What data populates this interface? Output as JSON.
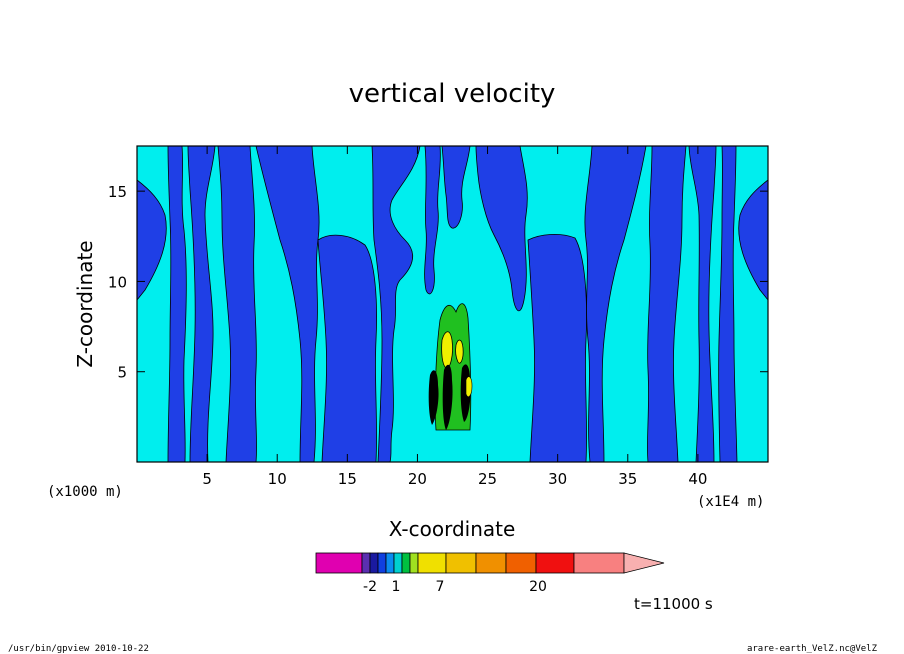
{
  "chart_data": {
    "type": "contour",
    "title": "vertical velocity",
    "xlabel": "X-coordinate",
    "ylabel": "Z-coordinate",
    "x_unit": "(x1E4 m)",
    "y_unit": "(x1000 m)",
    "x_ticks": [
      5,
      10,
      15,
      20,
      25,
      30,
      35,
      40
    ],
    "y_ticks": [
      5,
      10,
      15
    ],
    "xlim": [
      0,
      45
    ],
    "ylim": [
      0,
      17.5
    ],
    "colorbar": {
      "tick_labels": [
        "-2",
        "1",
        "7",
        "20"
      ],
      "colors": [
        "#e000b0",
        "#5a2fb0",
        "#1a1aa0",
        "#1040e0",
        "#0a8cf0",
        "#00d0d0",
        "#00c040",
        "#a0e020",
        "#f0e000",
        "#f0c000",
        "#f09000",
        "#f06000",
        "#f01010",
        "#f88080"
      ],
      "extend_color": "#f8b0b0"
    },
    "field_colors": {
      "negative": "#1f3fe6",
      "weak_positive": "#00eeee",
      "moderate": "#20c020",
      "strong": "#f0f000",
      "extreme": "#000000"
    }
  },
  "time_label": "t=11000 s",
  "footer": {
    "left": "/usr/bin/gpview   2010-10-22",
    "right": "arare-earth_VelZ.nc@VelZ"
  }
}
